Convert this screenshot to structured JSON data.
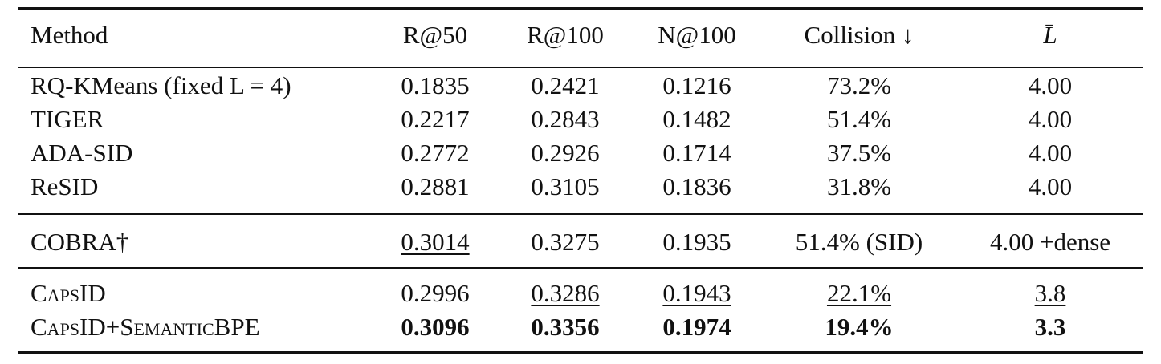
{
  "table": {
    "header": [
      "Method",
      "R@50",
      "R@100",
      "N@100",
      "Collision ↓",
      "L̄"
    ],
    "groups": [
      [
        [
          "RQ-KMeans (fixed L = 4)",
          "0.1835",
          "0.2421",
          "0.1216",
          "73.2%",
          "4.00"
        ],
        [
          "TIGER",
          "0.2217",
          "0.2843",
          "0.1482",
          "51.4%",
          "4.00"
        ],
        [
          "ADA-SID",
          "0.2772",
          "0.2926",
          "0.1714",
          "37.5%",
          "4.00"
        ],
        [
          "ReSID",
          "0.2881",
          "0.3105",
          "0.1836",
          "31.8%",
          "4.00"
        ]
      ],
      [
        [
          "COBRA†",
          {
            "text": "0.3014",
            "underline": true
          },
          "0.3275",
          "0.1935",
          "51.4% (SID)",
          "4.00 +dense"
        ]
      ],
      [
        [
          {
            "text": "CapsID",
            "smallcaps": true
          },
          "0.2996",
          {
            "text": "0.3286",
            "underline": true
          },
          {
            "text": "0.1943",
            "underline": true
          },
          {
            "text": "22.1%",
            "underline": true
          },
          {
            "text": "3.8",
            "underline": true
          }
        ],
        [
          {
            "text": "CapsID+SemanticBPE",
            "smallcaps": true
          },
          {
            "text": "0.3096",
            "bold": true
          },
          {
            "text": "0.3356",
            "bold": true
          },
          {
            "text": "0.1974",
            "bold": true
          },
          {
            "text": "19.4%",
            "bold": true
          },
          {
            "text": "3.3",
            "bold": true
          }
        ]
      ]
    ]
  }
}
